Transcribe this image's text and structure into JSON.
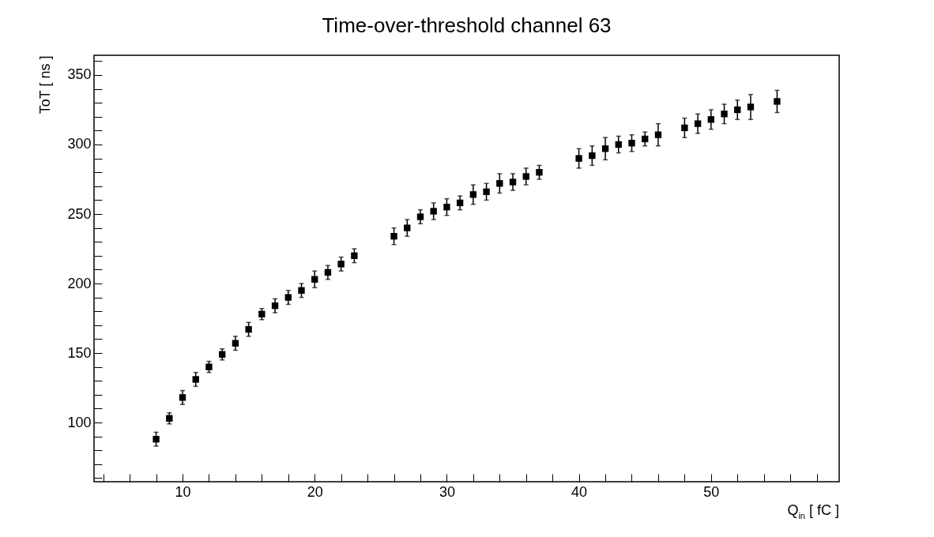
{
  "chart_data": {
    "type": "scatter",
    "title": "Time-over-threshold channel 63",
    "xlabel": "Q$_{in}$ [ fC ]",
    "ylabel": "ToT [ ns ]",
    "x": [
      8,
      9,
      10,
      11,
      12,
      13,
      14,
      15,
      16,
      17,
      18,
      19,
      20,
      21,
      22,
      23,
      26,
      27,
      28,
      29,
      30,
      31,
      32,
      33,
      34,
      35,
      36,
      37,
      40,
      41,
      42,
      43,
      44,
      45,
      46,
      48,
      49,
      50,
      51,
      52,
      53,
      55
    ],
    "series": [
      {
        "color": "#000000",
        "values": [
          88,
          103,
          118,
          131,
          140,
          149,
          157,
          167,
          178,
          184,
          190,
          195,
          203,
          208,
          214,
          220,
          234,
          240,
          248,
          252,
          255,
          258,
          264,
          266,
          272,
          273,
          277,
          280,
          290,
          292,
          297,
          300,
          301,
          304,
          307,
          312,
          315,
          318,
          322,
          325,
          327,
          331
        ],
        "errors": [
          5,
          4,
          5,
          5,
          4,
          4,
          5,
          5,
          4,
          5,
          5,
          5,
          6,
          5,
          5,
          5,
          6,
          6,
          5,
          6,
          6,
          5,
          7,
          6,
          7,
          6,
          6,
          5,
          7,
          7,
          8,
          6,
          6,
          5,
          8,
          7,
          7,
          7,
          7,
          7,
          9,
          8
        ]
      }
    ],
    "xlim": [
      3.3,
      59.7
    ],
    "ylim": [
      57.4,
      364.2
    ],
    "xticks": [
      {
        "value": 4,
        "label": null
      },
      {
        "value": 6,
        "label": null
      },
      {
        "value": 8,
        "label": null
      },
      10,
      {
        "value": 12,
        "label": null
      },
      {
        "value": 14,
        "label": null
      },
      {
        "value": 16,
        "label": null
      },
      {
        "value": 18,
        "label": null
      },
      20,
      {
        "value": 22,
        "label": null
      },
      {
        "value": 24,
        "label": null
      },
      {
        "value": 26,
        "label": null
      },
      {
        "value": 28,
        "label": null
      },
      30,
      {
        "value": 32,
        "label": null
      },
      {
        "value": 34,
        "label": null
      },
      {
        "value": 36,
        "label": null
      },
      {
        "value": 38,
        "label": null
      },
      40,
      {
        "value": 42,
        "label": null
      },
      {
        "value": 44,
        "label": null
      },
      {
        "value": 46,
        "label": null
      },
      {
        "value": 48,
        "label": null
      },
      50,
      {
        "value": 52,
        "label": null
      },
      {
        "value": 54,
        "label": null
      },
      {
        "value": 56,
        "label": null
      },
      {
        "value": 58,
        "label": null
      }
    ],
    "yticks": [
      {
        "value": 60,
        "label": null
      },
      {
        "value": 70,
        "label": null
      },
      {
        "value": 80,
        "label": null
      },
      {
        "value": 90,
        "label": null
      },
      100,
      {
        "value": 110,
        "label": null
      },
      {
        "value": 120,
        "label": null
      },
      {
        "value": 130,
        "label": null
      },
      {
        "value": 140,
        "label": null
      },
      150,
      {
        "value": 160,
        "label": null
      },
      {
        "value": 170,
        "label": null
      },
      {
        "value": 180,
        "label": null
      },
      {
        "value": 190,
        "label": null
      },
      200,
      {
        "value": 210,
        "label": null
      },
      {
        "value": 220,
        "label": null
      },
      {
        "value": 230,
        "label": null
      },
      {
        "value": 240,
        "label": null
      },
      250,
      {
        "value": 260,
        "label": null
      },
      {
        "value": 270,
        "label": null
      },
      {
        "value": 280,
        "label": null
      },
      {
        "value": 290,
        "label": null
      },
      300,
      {
        "value": 310,
        "label": null
      },
      {
        "value": 320,
        "label": null
      },
      {
        "value": 330,
        "label": null
      },
      {
        "value": 340,
        "label": null
      },
      350,
      {
        "value": 360,
        "label": null
      }
    ],
    "marker": "square",
    "grid": false
  }
}
